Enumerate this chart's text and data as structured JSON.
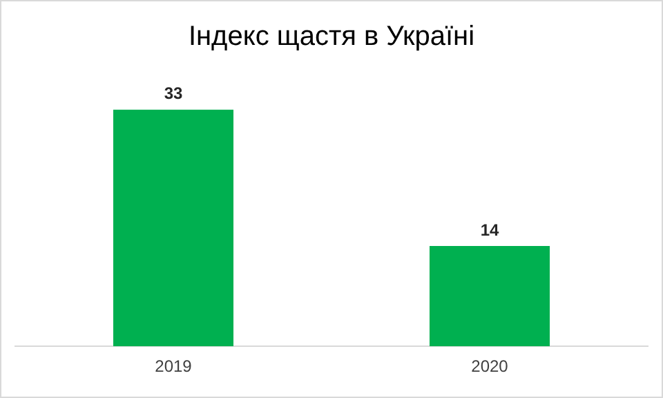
{
  "chart_data": {
    "type": "bar",
    "title": "Індекс щастя в Україні",
    "categories": [
      "2019",
      "2020"
    ],
    "values": [
      33,
      14
    ],
    "color": "#00b050",
    "data_labels": true,
    "grid": false,
    "legend": false
  }
}
